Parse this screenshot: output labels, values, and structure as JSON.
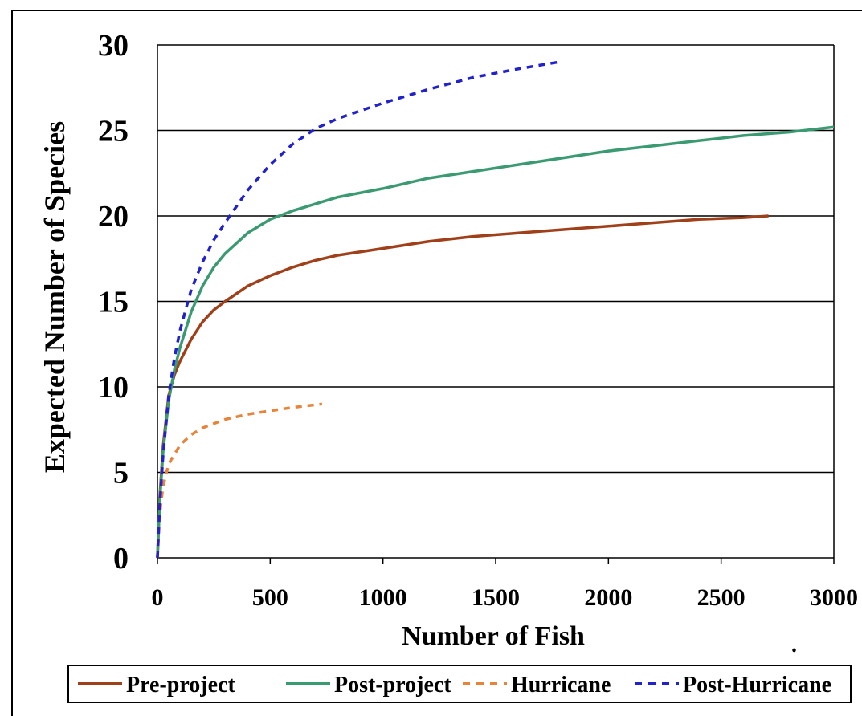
{
  "chart_data": {
    "type": "line",
    "title": "",
    "xlabel": "Number of Fish",
    "ylabel": "Expected Number of Species",
    "xlim": [
      0,
      3000
    ],
    "ylim": [
      0,
      30
    ],
    "x_ticks": [
      "0",
      "500",
      "1000",
      "1500",
      "2000",
      "2500",
      "3000"
    ],
    "y_ticks": [
      "0",
      "5",
      "10",
      "15",
      "20",
      "25",
      "30"
    ],
    "grid": "horizontal",
    "legend_position": "bottom",
    "series": [
      {
        "name": "Pre-project",
        "color": "#a0401a",
        "dash": "solid",
        "x": [
          0,
          10,
          25,
          50,
          75,
          100,
          150,
          200,
          250,
          300,
          400,
          500,
          600,
          700,
          800,
          1000,
          1200,
          1400,
          1600,
          1800,
          2000,
          2200,
          2400,
          2600,
          2710
        ],
        "y": [
          0,
          3.5,
          6.5,
          9.5,
          10.7,
          11.5,
          12.8,
          13.8,
          14.5,
          15.0,
          15.9,
          16.5,
          17.0,
          17.4,
          17.7,
          18.1,
          18.5,
          18.8,
          19.0,
          19.2,
          19.4,
          19.6,
          19.8,
          19.9,
          20.0
        ]
      },
      {
        "name": "Post-project",
        "color": "#3a9a72",
        "dash": "solid",
        "x": [
          0,
          10,
          25,
          50,
          75,
          100,
          150,
          200,
          250,
          300,
          400,
          500,
          600,
          700,
          800,
          1000,
          1200,
          1400,
          1600,
          1800,
          2000,
          2200,
          2400,
          2600,
          2800,
          3000
        ],
        "y": [
          0,
          3.2,
          6.2,
          9.2,
          11.0,
          12.3,
          14.4,
          15.9,
          17.0,
          17.8,
          19.0,
          19.8,
          20.3,
          20.7,
          21.1,
          21.6,
          22.2,
          22.6,
          23.0,
          23.4,
          23.8,
          24.1,
          24.4,
          24.7,
          24.9,
          25.2
        ]
      },
      {
        "name": "Hurricane",
        "color": "#e8843a",
        "dash": "dashed",
        "x": [
          0,
          10,
          25,
          50,
          100,
          150,
          200,
          300,
          400,
          500,
          600,
          730
        ],
        "y": [
          0,
          2.5,
          4.2,
          5.5,
          6.6,
          7.2,
          7.6,
          8.1,
          8.4,
          8.6,
          8.8,
          9.0
        ]
      },
      {
        "name": "Post-Hurricane",
        "color": "#2222cc",
        "dash": "dashed",
        "x": [
          0,
          10,
          25,
          50,
          75,
          100,
          150,
          200,
          250,
          300,
          400,
          500,
          600,
          700,
          800,
          1000,
          1200,
          1400,
          1600,
          1780
        ],
        "y": [
          0,
          3.0,
          6.0,
          9.5,
          11.7,
          13.3,
          15.7,
          17.3,
          18.6,
          19.6,
          21.5,
          23.0,
          24.2,
          25.1,
          25.7,
          26.6,
          27.4,
          28.1,
          28.6,
          29.0
        ]
      }
    ]
  }
}
